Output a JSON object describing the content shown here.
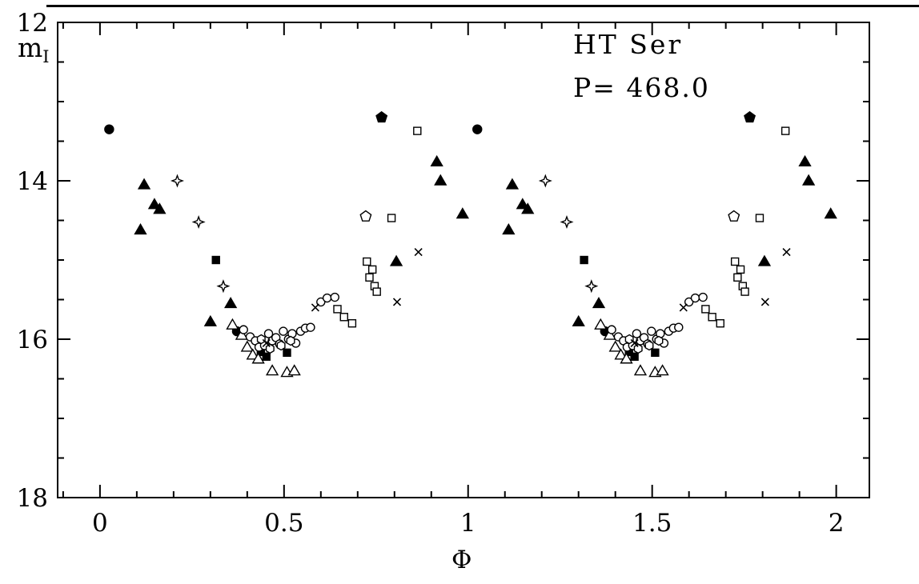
{
  "colors": {
    "ink": "#000000",
    "background": "#ffffff"
  },
  "labels": {
    "title": "HT Ser",
    "period": "P= 468.0",
    "xlabel": "Φ",
    "ylabel_main": "m",
    "ylabel_sub": "I"
  },
  "chart_data": {
    "type": "scatter",
    "title": "HT Ser",
    "annotation": "P= 468.0",
    "xlabel": "Φ",
    "ylabel": "m_I",
    "xlim": [
      -0.115,
      2.09
    ],
    "ylim": [
      18,
      12
    ],
    "y_axis_inverted": true,
    "grid": false,
    "x_ticks": [
      0,
      0.5,
      1,
      1.5,
      2
    ],
    "x_tick_labels": [
      "0",
      "0.5",
      "1",
      "1.5",
      "2"
    ],
    "x_minor_step": 0.1,
    "y_ticks": [
      12,
      14,
      16,
      18
    ],
    "y_tick_labels": [
      "12",
      "14",
      "16",
      "18"
    ],
    "y_minor_step": 0.5,
    "duplicate_cycle": true,
    "series": [
      {
        "name": "filled-circle",
        "marker": "circle",
        "filled": true,
        "size": 5.5,
        "points": [
          [
            0.025,
            13.35
          ],
          [
            0.372,
            15.9
          ]
        ]
      },
      {
        "name": "filled-triangle",
        "marker": "triangle",
        "filled": true,
        "size": 6,
        "points": [
          [
            0.11,
            14.62
          ],
          [
            0.12,
            14.05
          ],
          [
            0.148,
            14.3
          ],
          [
            0.162,
            14.36
          ],
          [
            0.3,
            15.78
          ],
          [
            0.355,
            15.55
          ],
          [
            0.805,
            15.02
          ],
          [
            0.915,
            13.76
          ],
          [
            0.925,
            14.0
          ],
          [
            0.985,
            14.42
          ]
        ]
      },
      {
        "name": "open-star",
        "marker": "star4",
        "filled": false,
        "size": 6.5,
        "points": [
          [
            0.21,
            14.0
          ],
          [
            0.268,
            14.52
          ],
          [
            0.335,
            15.33
          ]
        ]
      },
      {
        "name": "filled-square",
        "marker": "square",
        "filled": true,
        "size": 4.5,
        "points": [
          [
            0.315,
            15.0
          ],
          [
            0.437,
            16.16
          ],
          [
            0.452,
            16.22
          ],
          [
            0.508,
            16.17
          ]
        ]
      },
      {
        "name": "open-triangle",
        "marker": "triangle",
        "filled": false,
        "size": 6,
        "points": [
          [
            0.36,
            15.82
          ],
          [
            0.385,
            15.95
          ],
          [
            0.4,
            16.1
          ],
          [
            0.415,
            16.2
          ],
          [
            0.43,
            16.25
          ],
          [
            0.468,
            16.4
          ],
          [
            0.508,
            16.42
          ],
          [
            0.528,
            16.4
          ]
        ]
      },
      {
        "name": "open-circle",
        "marker": "circle",
        "filled": false,
        "size": 5,
        "points": [
          [
            0.39,
            15.88
          ],
          [
            0.408,
            15.97
          ],
          [
            0.422,
            16.02
          ],
          [
            0.432,
            16.1
          ],
          [
            0.447,
            16.08
          ],
          [
            0.458,
            15.93
          ],
          [
            0.468,
            16.02
          ],
          [
            0.478,
            15.98
          ],
          [
            0.488,
            16.06
          ],
          [
            0.498,
            15.9
          ],
          [
            0.512,
            16.0
          ],
          [
            0.522,
            15.93
          ],
          [
            0.532,
            16.05
          ],
          [
            0.545,
            15.9
          ],
          [
            0.558,
            15.86
          ],
          [
            0.572,
            15.85
          ],
          [
            0.6,
            15.53
          ],
          [
            0.617,
            15.48
          ],
          [
            0.638,
            15.47
          ]
        ]
      },
      {
        "name": "open-hexagon",
        "marker": "hexagon",
        "filled": false,
        "size": 5.5,
        "points": [
          [
            0.438,
            16.0
          ],
          [
            0.462,
            16.12
          ],
          [
            0.492,
            16.08
          ],
          [
            0.518,
            16.02
          ]
        ]
      },
      {
        "name": "open-square",
        "marker": "square",
        "filled": false,
        "size": 4.5,
        "points": [
          [
            0.645,
            15.62
          ],
          [
            0.663,
            15.72
          ],
          [
            0.685,
            15.8
          ],
          [
            0.725,
            15.02
          ],
          [
            0.732,
            15.22
          ],
          [
            0.74,
            15.12
          ],
          [
            0.746,
            15.33
          ],
          [
            0.752,
            15.4
          ],
          [
            0.792,
            14.47
          ],
          [
            0.862,
            13.37
          ]
        ]
      },
      {
        "name": "open-pentagon",
        "marker": "pentagon",
        "filled": false,
        "size": 7,
        "points": [
          [
            0.722,
            14.45
          ]
        ]
      },
      {
        "name": "filled-pentagon",
        "marker": "pentagon",
        "filled": true,
        "size": 7,
        "points": [
          [
            0.765,
            13.2
          ]
        ]
      },
      {
        "name": "cross",
        "marker": "cross",
        "filled": false,
        "size": 4.5,
        "points": [
          [
            0.452,
            16.05
          ],
          [
            0.585,
            15.6
          ],
          [
            0.807,
            15.53
          ],
          [
            0.865,
            14.9
          ]
        ]
      }
    ]
  }
}
